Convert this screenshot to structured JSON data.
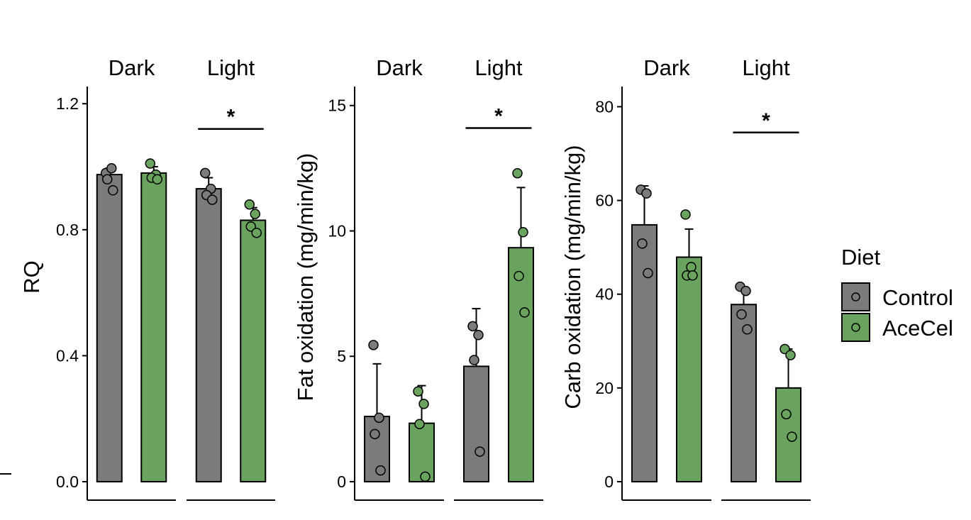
{
  "legend": {
    "title": "Diet",
    "entries": [
      {
        "label": "Control",
        "color": "#7b7a7d"
      },
      {
        "label": "AceCel",
        "color": "#6aa35e"
      }
    ]
  },
  "chart_data": [
    {
      "type": "bar",
      "title": "",
      "xlabel": "",
      "ylabel": "RQ",
      "ylim": [
        0,
        1.25
      ],
      "yticks": [
        0.0,
        0.4,
        0.8,
        1.2
      ],
      "ytick_labels": [
        "0.0",
        "0.4",
        "0.8",
        "1.2"
      ],
      "facets": [
        "Dark",
        "Light"
      ],
      "series_names": [
        "Control",
        "AceCel"
      ],
      "bars": [
        {
          "facet": "Dark",
          "series": "Control",
          "mean": 0.975,
          "sd": 0.02,
          "points": [
            0.98,
            0.995,
            0.96,
            0.925
          ]
        },
        {
          "facet": "Dark",
          "series": "AceCel",
          "mean": 0.98,
          "sd": 0.02,
          "points": [
            1.01,
            0.975,
            0.965,
            0.96
          ]
        },
        {
          "facet": "Light",
          "series": "Control",
          "mean": 0.93,
          "sd": 0.035,
          "points": [
            0.98,
            0.93,
            0.91,
            0.895
          ]
        },
        {
          "facet": "Light",
          "series": "AceCel",
          "mean": 0.83,
          "sd": 0.04,
          "points": [
            0.88,
            0.85,
            0.81,
            0.79
          ]
        }
      ],
      "significance": [
        {
          "facet": "Light",
          "label": "*",
          "y": 1.12
        }
      ],
      "grid": false,
      "legend_position": "right"
    },
    {
      "type": "bar",
      "title": "",
      "xlabel": "",
      "ylabel": "Fat oxidation (mg/min/kg)",
      "ylim": [
        0,
        15.7
      ],
      "yticks": [
        0,
        5,
        10,
        15
      ],
      "ytick_labels": [
        "0",
        "5",
        "10",
        "15"
      ],
      "facets": [
        "Dark",
        "Light"
      ],
      "series_names": [
        "Control",
        "AceCel"
      ],
      "bars": [
        {
          "facet": "Dark",
          "series": "Control",
          "mean": 2.6,
          "sd": 2.1,
          "points": [
            5.45,
            2.55,
            1.9,
            0.45
          ]
        },
        {
          "facet": "Dark",
          "series": "AceCel",
          "mean": 2.33,
          "sd": 1.5,
          "points": [
            3.6,
            3.1,
            2.3,
            0.2
          ]
        },
        {
          "facet": "Light",
          "series": "Control",
          "mean": 4.6,
          "sd": 2.3,
          "points": [
            6.2,
            5.85,
            4.85,
            1.2
          ]
        },
        {
          "facet": "Light",
          "series": "AceCel",
          "mean": 9.33,
          "sd": 2.4,
          "points": [
            12.3,
            9.95,
            8.2,
            6.75
          ]
        }
      ],
      "significance": [
        {
          "facet": "Light",
          "label": "*",
          "y": 14.1
        }
      ],
      "grid": false,
      "legend_position": "right"
    },
    {
      "type": "bar",
      "title": "",
      "xlabel": "",
      "ylabel": "Carb oxidation (mg/min/kg)",
      "ylim": [
        0,
        84
      ],
      "yticks": [
        0,
        20,
        40,
        60,
        80
      ],
      "ytick_labels": [
        "0",
        "20",
        "40",
        "60",
        "80"
      ],
      "facets": [
        "Dark",
        "Light"
      ],
      "series_names": [
        "Control",
        "AceCel"
      ],
      "bars": [
        {
          "facet": "Dark",
          "series": "Control",
          "mean": 54.8,
          "sd": 8.3,
          "points": [
            62.3,
            61.5,
            50.8,
            44.5
          ]
        },
        {
          "facet": "Dark",
          "series": "AceCel",
          "mean": 47.9,
          "sd": 6.0,
          "points": [
            57.0,
            45.8,
            44.0,
            44.0
          ]
        },
        {
          "facet": "Light",
          "series": "Control",
          "mean": 37.8,
          "sd": 3.8,
          "points": [
            41.6,
            40.7,
            35.7,
            32.5
          ]
        },
        {
          "facet": "Light",
          "series": "AceCel",
          "mean": 20.0,
          "sd": 8.3,
          "points": [
            28.3,
            27.0,
            14.4,
            9.6
          ]
        }
      ],
      "significance": [
        {
          "facet": "Light",
          "label": "*",
          "y": 74.5
        }
      ],
      "grid": false,
      "legend_position": "right"
    }
  ]
}
